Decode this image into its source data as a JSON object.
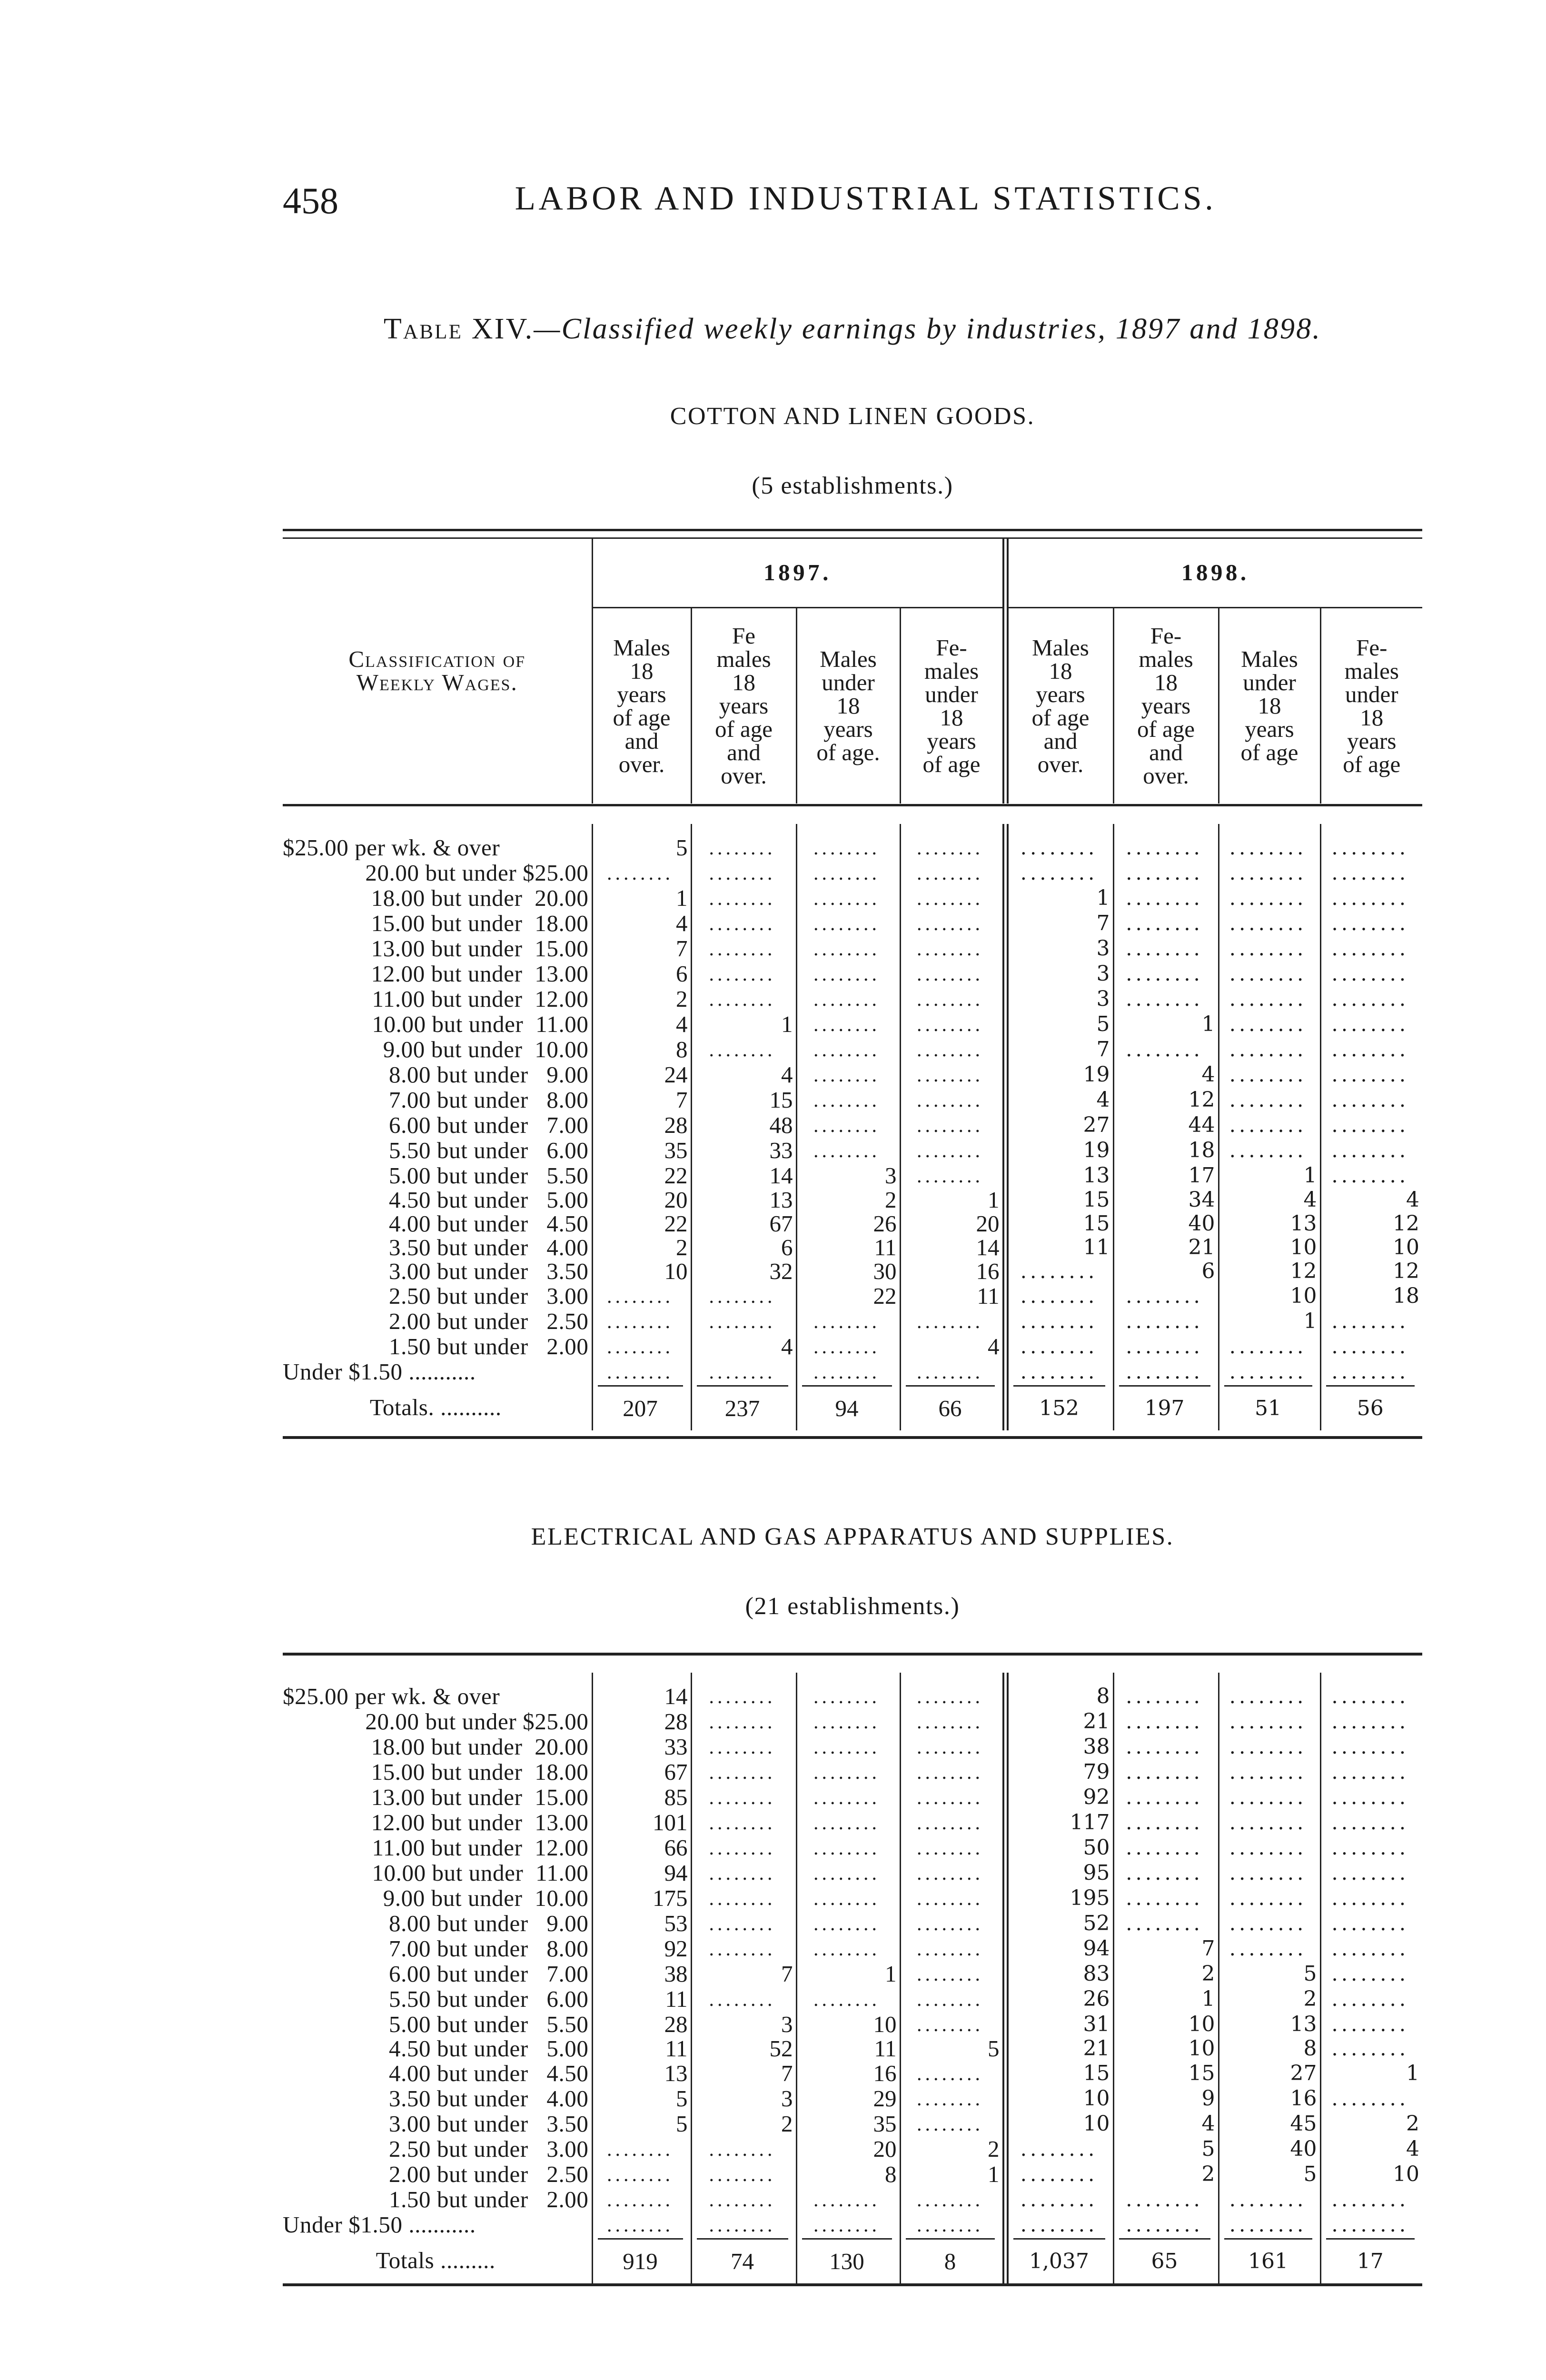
{
  "header": {
    "page_number": "458",
    "running_title": "LABOR AND INDUSTRIAL STATISTICS."
  },
  "table_title": {
    "label": "Table XIV.",
    "caption": "—Classified weekly earnings by industries, 1897 and 1898."
  },
  "column_headers": {
    "classification": [
      "Classification of",
      "Weekly Wages."
    ],
    "years": [
      "1897.",
      "1898."
    ],
    "columns_1897": [
      [
        "Males",
        "18",
        "years",
        "of age",
        "and",
        "over."
      ],
      [
        "Fe",
        "males",
        "18",
        "years",
        "of age",
        "and",
        "over."
      ],
      [
        "Males",
        "under",
        "18",
        "years",
        "of age."
      ],
      [
        "Fe-",
        "males",
        "under",
        "18",
        "years",
        "of age"
      ]
    ],
    "columns_1898": [
      [
        "Males",
        "18",
        "years",
        "of age",
        "and",
        "over."
      ],
      [
        "Fe-",
        "males",
        "18",
        "years",
        "of age",
        "and",
        "over."
      ],
      [
        "Males",
        "under",
        "18",
        "years",
        "of age"
      ],
      [
        "Fe-",
        "males",
        "under",
        "18",
        "years",
        "of age"
      ]
    ]
  },
  "wage_classes": [
    "$25.00 per wk. & over",
    "20.00 but under $25.00",
    "18.00 but under  20.00",
    "15.00 but under  18.00",
    "13.00 but under  15.00",
    "12.00 but under  13.00",
    "11.00 but under  12.00",
    "10.00 but under  11.00",
    "9.00 but under  10.00",
    "8.00 but under   9.00",
    "7.00 but under   8.00",
    "6.00 but under   7.00",
    "5.50 but under   6.00",
    "5.00 but under   5.50",
    "4.50 but under   5.00",
    "4.00 but under   4.50",
    "3.50 but under   4.00",
    "3.00 but under   3.50",
    "2.50 but under   3.00",
    "2.00 but under   2.50",
    "1.50 but under   2.00",
    "Under $1.50 ..........."
  ],
  "sections": [
    {
      "title": "COTTON AND LINEN GOODS.",
      "establishments": "(5 establishments.)",
      "rows": [
        [
          "5",
          null,
          null,
          null,
          null,
          null,
          null,
          null
        ],
        [
          null,
          null,
          null,
          null,
          null,
          null,
          null,
          null
        ],
        [
          "1",
          null,
          null,
          null,
          "1",
          null,
          null,
          null
        ],
        [
          "4",
          null,
          null,
          null,
          "7",
          null,
          null,
          null
        ],
        [
          "7",
          null,
          null,
          null,
          "3",
          null,
          null,
          null
        ],
        [
          "6",
          null,
          null,
          null,
          "3",
          null,
          null,
          null
        ],
        [
          "2",
          null,
          null,
          null,
          "3",
          null,
          null,
          null
        ],
        [
          "4",
          "1",
          null,
          null,
          "5",
          "1",
          null,
          null
        ],
        [
          "8",
          null,
          null,
          null,
          "7",
          null,
          null,
          null
        ],
        [
          "24",
          "4",
          null,
          null,
          "19",
          "4",
          null,
          null
        ],
        [
          "7",
          "15",
          null,
          null,
          "4",
          "12",
          null,
          null
        ],
        [
          "28",
          "48",
          null,
          null,
          "27",
          "44",
          null,
          null
        ],
        [
          "35",
          "33",
          null,
          null,
          "19",
          "18",
          null,
          null
        ],
        [
          "22",
          "14",
          "3",
          null,
          "13",
          "17",
          "1",
          null
        ],
        [
          "20",
          "13",
          "2",
          "1",
          "15",
          "34",
          "4",
          "4"
        ],
        [
          "22",
          "67",
          "26",
          "20",
          "15",
          "40",
          "13",
          "12"
        ],
        [
          "2",
          "6",
          "11",
          "14",
          "11",
          "21",
          "10",
          "10"
        ],
        [
          "10",
          "32",
          "30",
          "16",
          null,
          "6",
          "12",
          "12"
        ],
        [
          null,
          null,
          "22",
          "11",
          null,
          null,
          "10",
          "18"
        ],
        [
          null,
          null,
          null,
          null,
          null,
          null,
          "1",
          null
        ],
        [
          null,
          "4",
          null,
          "4",
          null,
          null,
          null,
          null
        ],
        [
          null,
          null,
          null,
          null,
          null,
          null,
          null,
          null
        ]
      ],
      "totals_label": "Totals. ..........",
      "totals": [
        "207",
        "237",
        "94",
        "66",
        "152",
        "197",
        "51",
        "56"
      ]
    },
    {
      "title": "ELECTRICAL AND GAS APPARATUS AND SUPPLIES.",
      "establishments": "(21 establishments.)",
      "rows": [
        [
          "14",
          null,
          null,
          null,
          "8",
          null,
          null,
          null
        ],
        [
          "28",
          null,
          null,
          null,
          "21",
          null,
          null,
          null
        ],
        [
          "33",
          null,
          null,
          null,
          "38",
          null,
          null,
          null
        ],
        [
          "67",
          null,
          null,
          null,
          "79",
          null,
          null,
          null
        ],
        [
          "85",
          null,
          null,
          null,
          "92",
          null,
          null,
          null
        ],
        [
          "101",
          null,
          null,
          null,
          "117",
          null,
          null,
          null
        ],
        [
          "66",
          null,
          null,
          null,
          "50",
          null,
          null,
          null
        ],
        [
          "94",
          null,
          null,
          null,
          "95",
          null,
          null,
          null
        ],
        [
          "175",
          null,
          null,
          null,
          "195",
          null,
          null,
          null
        ],
        [
          "53",
          null,
          null,
          null,
          "52",
          null,
          null,
          null
        ],
        [
          "92",
          null,
          null,
          null,
          "94",
          "7",
          null,
          null
        ],
        [
          "38",
          "7",
          "1",
          null,
          "83",
          "2",
          "5",
          null
        ],
        [
          "11",
          null,
          null,
          null,
          "26",
          "1",
          "2",
          null
        ],
        [
          "28",
          "3",
          "10",
          null,
          "31",
          "10",
          "13",
          null
        ],
        [
          "11",
          "52",
          "11",
          "5",
          "21",
          "10",
          "8",
          null
        ],
        [
          "13",
          "7",
          "16",
          null,
          "15",
          "15",
          "27",
          "1"
        ],
        [
          "5",
          "3",
          "29",
          null,
          "10",
          "9",
          "16",
          null
        ],
        [
          "5",
          "2",
          "35",
          null,
          "10",
          "4",
          "45",
          "2"
        ],
        [
          null,
          null,
          "20",
          "2",
          null,
          "5",
          "40",
          "4"
        ],
        [
          null,
          null,
          "8",
          "1",
          null,
          "2",
          "5",
          "10"
        ],
        [
          null,
          null,
          null,
          null,
          null,
          null,
          null,
          null
        ],
        [
          null,
          null,
          null,
          null,
          null,
          null,
          null,
          null
        ]
      ],
      "totals_label": "Totals .........",
      "totals": [
        "919",
        "74",
        "130",
        "8",
        "1,037",
        "65",
        "161",
        "17"
      ]
    }
  ]
}
